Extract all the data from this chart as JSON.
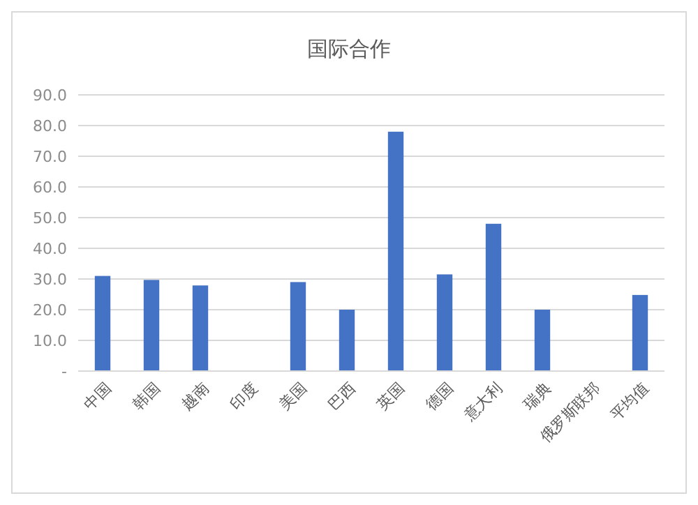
{
  "chart_data": {
    "type": "bar",
    "title": "国际合作",
    "categories": [
      "中国",
      "韩国",
      "越南",
      "印度",
      "美国",
      "巴西",
      "英国",
      "德国",
      "意大利",
      "瑞典",
      "俄罗斯联邦",
      "平均值"
    ],
    "values": [
      31,
      29.7,
      27.9,
      0,
      29,
      20,
      78,
      31.5,
      48,
      20,
      0,
      24.8
    ],
    "color": "#4472c4",
    "ylim": [
      0,
      90
    ],
    "yticks": [
      {
        "value": 0,
        "label": "-"
      },
      {
        "value": 10,
        "label": "10.0"
      },
      {
        "value": 20,
        "label": "20.0"
      },
      {
        "value": 30,
        "label": "30.0"
      },
      {
        "value": 40,
        "label": "40.0"
      },
      {
        "value": 50,
        "label": "50.0"
      },
      {
        "value": 60,
        "label": "60.0"
      },
      {
        "value": 70,
        "label": "70.0"
      },
      {
        "value": 80,
        "label": "80.0"
      },
      {
        "value": 90,
        "label": "90.0"
      }
    ],
    "grid": "y"
  }
}
